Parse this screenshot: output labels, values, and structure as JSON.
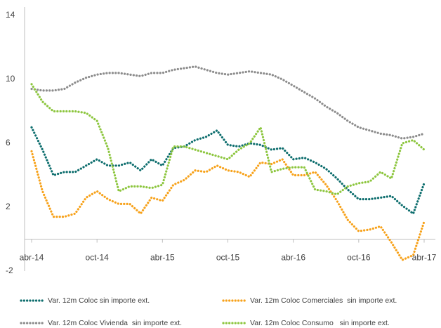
{
  "chart_data": {
    "type": "line",
    "categories": [
      "abr-14",
      null,
      null,
      null,
      null,
      null,
      "oct-14",
      null,
      null,
      null,
      null,
      null,
      "abr-15",
      null,
      null,
      null,
      null,
      null,
      "oct-15",
      null,
      null,
      null,
      null,
      null,
      "abr-16",
      null,
      null,
      null,
      null,
      null,
      "oct-16",
      null,
      null,
      null,
      null,
      null,
      "abr-17"
    ],
    "series": [
      {
        "name": "Var. 12m Coloc sin importe ext.",
        "color": "#0e6e6e",
        "values": [
          7.0,
          5.6,
          4.0,
          4.2,
          4.2,
          4.6,
          5.0,
          4.6,
          4.6,
          4.8,
          4.3,
          5.0,
          4.6,
          5.7,
          5.8,
          6.2,
          6.4,
          6.8,
          5.9,
          5.8,
          6.0,
          5.9,
          5.6,
          5.7,
          5.0,
          5.1,
          4.8,
          4.4,
          3.8,
          3.1,
          2.5,
          2.5,
          2.6,
          2.7,
          2.1,
          1.6,
          3.5
        ]
      },
      {
        "name": "Var. 12m Coloc Comerciales  sin importe ext.",
        "color": "#f7a21b",
        "values": [
          5.5,
          3.0,
          1.4,
          1.4,
          1.6,
          2.6,
          3.0,
          2.5,
          2.2,
          2.2,
          1.6,
          2.6,
          2.4,
          3.4,
          3.7,
          4.3,
          4.2,
          4.6,
          4.3,
          4.2,
          3.9,
          4.8,
          4.7,
          5.0,
          4.0,
          4.0,
          4.2,
          3.4,
          2.4,
          1.2,
          0.5,
          0.6,
          0.8,
          -0.2,
          -1.3,
          -1.0,
          1.1
        ]
      },
      {
        "name": "Var. 12m Coloc Vivienda  sin importe ext.",
        "color": "#8c8c8c",
        "values": [
          9.4,
          9.3,
          9.3,
          9.4,
          9.8,
          10.1,
          10.3,
          10.4,
          10.4,
          10.3,
          10.2,
          10.4,
          10.4,
          10.6,
          10.7,
          10.8,
          10.6,
          10.4,
          10.3,
          10.4,
          10.5,
          10.4,
          10.3,
          10.0,
          9.6,
          9.2,
          8.8,
          8.3,
          7.9,
          7.4,
          7.0,
          6.8,
          6.6,
          6.5,
          6.3,
          6.4,
          6.6
        ]
      },
      {
        "name": "Var. 12m Coloc Consumo   sin importe ext.",
        "color": "#8dc63f",
        "values": [
          9.7,
          8.6,
          8.0,
          8.0,
          8.0,
          7.9,
          7.4,
          5.7,
          3.0,
          3.3,
          3.3,
          3.2,
          3.4,
          5.8,
          5.8,
          5.6,
          5.4,
          5.2,
          5.0,
          5.6,
          6.0,
          7.0,
          4.2,
          4.4,
          4.5,
          4.5,
          3.1,
          3.0,
          2.8,
          3.3,
          3.5,
          3.6,
          4.2,
          3.8,
          6.0,
          6.2,
          5.6
        ]
      }
    ],
    "ylim": [
      -2,
      14
    ],
    "yticks": [
      -2,
      2,
      6,
      10,
      14
    ],
    "grid": false
  }
}
